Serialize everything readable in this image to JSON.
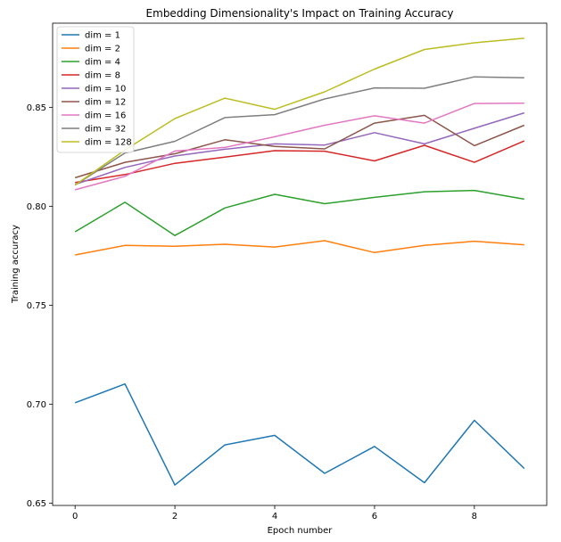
{
  "chart_data": {
    "type": "line",
    "title": "Embedding Dimensionality's Impact on Training Accuracy",
    "xlabel": "Epoch number",
    "ylabel": "Training accuracy",
    "xlim": [
      -0.45,
      9.45
    ],
    "ylim": [
      0.6488,
      0.8925
    ],
    "xticks": [
      0,
      2,
      4,
      6,
      8
    ],
    "yticks": [
      0.65,
      0.7,
      0.75,
      0.8,
      0.85
    ],
    "ytick_labels": [
      "0.65",
      "0.70",
      "0.75",
      "0.80",
      "0.85"
    ],
    "grid": false,
    "legend_position": "top-left",
    "x": [
      0,
      1,
      2,
      3,
      4,
      5,
      6,
      7,
      8,
      9
    ],
    "series": [
      {
        "name": "dim = 1",
        "color": "#1f77b4",
        "values": [
          0.7007,
          0.7102,
          0.6591,
          0.6794,
          0.6842,
          0.665,
          0.6786,
          0.6603,
          0.6918,
          0.6675
        ]
      },
      {
        "name": "dim = 2",
        "color": "#ff7f0e",
        "values": [
          0.7754,
          0.7802,
          0.7798,
          0.7808,
          0.7794,
          0.7826,
          0.7766,
          0.7802,
          0.7823,
          0.7805
        ]
      },
      {
        "name": "dim = 4",
        "color": "#2ca02c",
        "values": [
          0.7871,
          0.802,
          0.7852,
          0.7991,
          0.806,
          0.8013,
          0.8045,
          0.8073,
          0.808,
          0.8036
        ]
      },
      {
        "name": "dim = 8",
        "color": "#d62728",
        "values": [
          0.812,
          0.816,
          0.8217,
          0.8248,
          0.8281,
          0.8278,
          0.8229,
          0.8308,
          0.8222,
          0.833
        ]
      },
      {
        "name": "dim = 10",
        "color": "#9467bd",
        "values": [
          0.811,
          0.8196,
          0.8254,
          0.8288,
          0.8315,
          0.8309,
          0.8372,
          0.8315,
          0.8394,
          0.8472
        ]
      },
      {
        "name": "dim = 12",
        "color": "#8c564b",
        "values": [
          0.8144,
          0.8222,
          0.8265,
          0.8336,
          0.8302,
          0.829,
          0.842,
          0.8459,
          0.8306,
          0.8409
        ]
      },
      {
        "name": "dim = 16",
        "color": "#e377c2",
        "values": [
          0.8083,
          0.8151,
          0.8279,
          0.8297,
          0.8351,
          0.8409,
          0.8457,
          0.842,
          0.8519,
          0.8521
        ]
      },
      {
        "name": "dim = 32",
        "color": "#7f7f7f",
        "values": [
          0.8107,
          0.8269,
          0.8328,
          0.8448,
          0.8463,
          0.8542,
          0.8598,
          0.8596,
          0.8654,
          0.8649
        ]
      },
      {
        "name": "dim = 128",
        "color": "#bcbd22",
        "values": [
          0.8107,
          0.8284,
          0.8443,
          0.8546,
          0.849,
          0.8578,
          0.8693,
          0.8792,
          0.8826,
          0.8849
        ]
      }
    ]
  }
}
